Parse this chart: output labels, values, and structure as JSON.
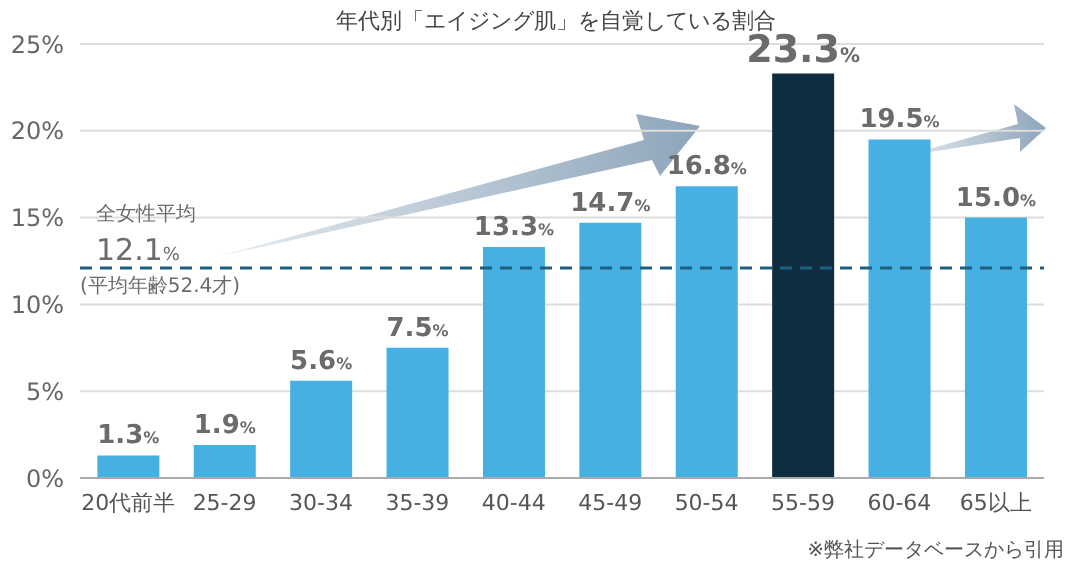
{
  "chart_data": {
    "type": "bar",
    "title": "年代別「エイジング肌」を自覚している割合",
    "categories": [
      "20代前半",
      "25-29",
      "30-34",
      "35-39",
      "40-44",
      "45-49",
      "50-54",
      "55-59",
      "60-64",
      "65以上"
    ],
    "values": [
      1.3,
      1.9,
      5.6,
      7.5,
      13.3,
      14.7,
      16.8,
      23.3,
      19.5,
      15.0
    ],
    "colors": [
      "#45b0e1",
      "#45b0e1",
      "#45b0e1",
      "#45b0e1",
      "#45b0e1",
      "#45b0e1",
      "#45b0e1",
      "#0e2d40",
      "#45b0e1",
      "#45b0e1"
    ],
    "value_labels": [
      "1.3%",
      "1.9%",
      "5.6%",
      "7.5%",
      "13.3%",
      "14.7%",
      "16.8%",
      "23.3%",
      "19.5%",
      "15.0%"
    ],
    "ylim": [
      0,
      25
    ],
    "yticks": [
      {
        "value": 0,
        "label": "0%"
      },
      {
        "value": 5,
        "label": "5%"
      },
      {
        "value": 10,
        "label": "10%"
      },
      {
        "value": 15,
        "label": "15%"
      },
      {
        "value": 20,
        "label": "20%"
      },
      {
        "value": 25,
        "label": "25%"
      }
    ],
    "grid": "y",
    "ref_lines": [
      {
        "axis": "y",
        "value": 12.1,
        "label": "全女性平均\n12.1%\n(平均年齢52.4才)",
        "color": "#1f5f80",
        "line_style": "dashed"
      }
    ],
    "annotations": [
      "※弊社データベースから引用"
    ]
  }
}
